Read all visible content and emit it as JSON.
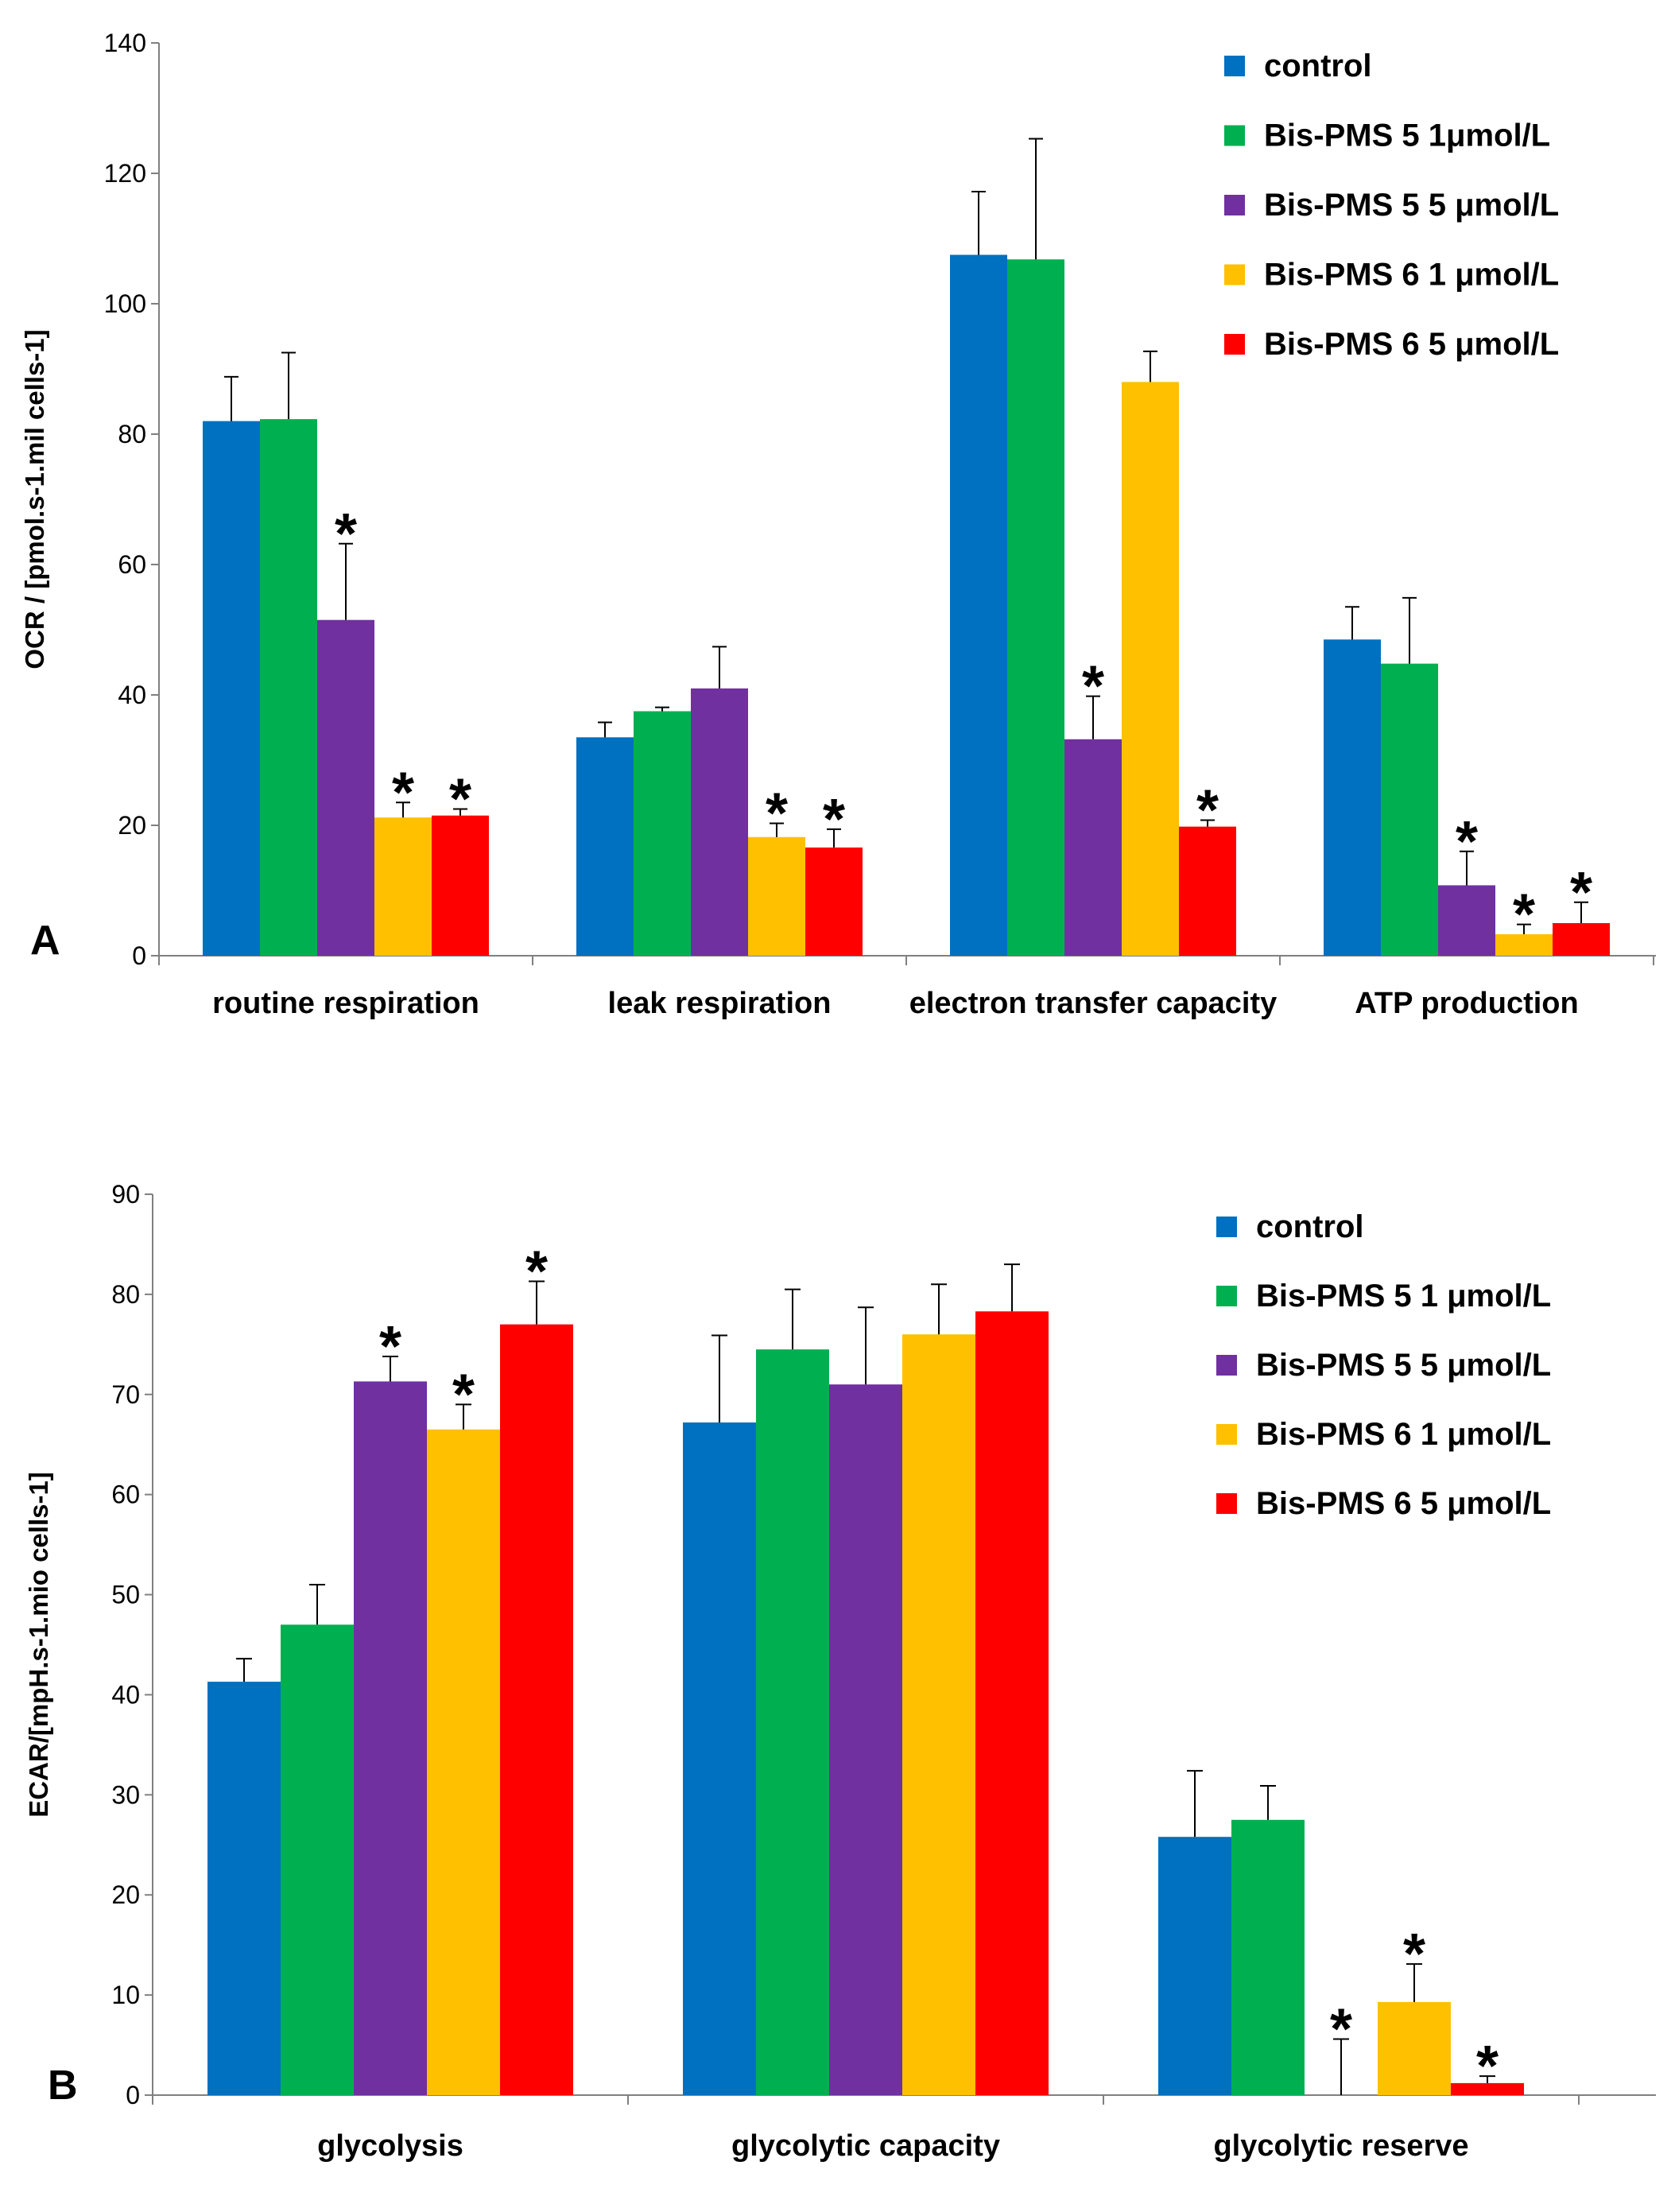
{
  "chart_data": [
    {
      "type": "bar",
      "panel_label": "A",
      "ylabel": "OCR / [pmol.s-1.mil cells-1]",
      "ylim": [
        0,
        140
      ],
      "yticks": [
        0,
        20,
        40,
        60,
        80,
        100,
        120,
        140
      ],
      "categories": [
        "routine respiration",
        "leak respiration",
        "electron transfer capacity",
        "ATP production"
      ],
      "legend_position": "top-right",
      "series": [
        {
          "name": "control",
          "color": "#0070C0",
          "values": [
            82,
            33.5,
            107.5,
            48.5
          ],
          "errors": [
            6.8,
            2.3,
            9.7,
            5
          ],
          "significant": [
            false,
            false,
            false,
            false
          ]
        },
        {
          "name": "Bis-PMS 5 1μmol/L",
          "color": "#00B050",
          "values": [
            82.3,
            37.5,
            106.8,
            44.8
          ],
          "errors": [
            10.2,
            0.6,
            18.5,
            10.1
          ],
          "significant": [
            false,
            false,
            false,
            false
          ]
        },
        {
          "name": "Bis-PMS 5 5 μmol/L",
          "color": "#7030A0",
          "values": [
            51.5,
            41,
            33.2,
            10.8
          ],
          "errors": [
            11.7,
            6.4,
            6.6,
            5.2
          ],
          "significant": [
            true,
            false,
            true,
            true
          ]
        },
        {
          "name": "Bis-PMS 6 1 μmol/L",
          "color": "#FFC000",
          "values": [
            21.2,
            18.2,
            88,
            3.3
          ],
          "errors": [
            2.3,
            2.1,
            4.7,
            1.5
          ],
          "significant": [
            true,
            true,
            false,
            true
          ]
        },
        {
          "name": "Bis-PMS 6 5 μmol/L",
          "color": "#FF0000",
          "values": [
            21.5,
            16.6,
            19.8,
            5
          ],
          "errors": [
            1,
            2.8,
            1,
            3.2
          ],
          "significant": [
            true,
            true,
            true,
            true
          ]
        }
      ]
    },
    {
      "type": "bar",
      "panel_label": "B",
      "ylabel": "ECAR/[mpH.s-1.mio cells-1]",
      "ylim": [
        0,
        90
      ],
      "yticks": [
        0,
        10,
        20,
        30,
        40,
        50,
        60,
        70,
        80,
        90
      ],
      "categories": [
        "glycolysis",
        "glycolytic  capacity",
        "glycolytic reserve"
      ],
      "legend_position": "top-right",
      "series": [
        {
          "name": "control",
          "color": "#0070C0",
          "values": [
            41.3,
            67.2,
            25.8
          ],
          "errors": [
            2.3,
            8.7,
            6.6
          ],
          "significant": [
            false,
            false,
            false
          ]
        },
        {
          "name": "Bis-PMS 5 1 μmol/L",
          "color": "#00B050",
          "values": [
            47,
            74.5,
            27.5
          ],
          "errors": [
            4,
            6,
            3.4
          ],
          "significant": [
            false,
            false,
            false
          ]
        },
        {
          "name": "Bis-PMS 5 5 μmol/L",
          "color": "#7030A0",
          "values": [
            71.3,
            71,
            0
          ],
          "errors": [
            2.5,
            7.7,
            5.6
          ],
          "significant": [
            true,
            false,
            true
          ]
        },
        {
          "name": "Bis-PMS 6 1 μmol/L",
          "color": "#FFC000",
          "values": [
            66.5,
            76,
            9.3
          ],
          "errors": [
            2.5,
            5,
            3.8
          ],
          "significant": [
            true,
            false,
            true
          ]
        },
        {
          "name": "Bis-PMS 6 5 μmol/L",
          "color": "#FF0000",
          "values": [
            77,
            78.3,
            1.2
          ],
          "errors": [
            4.3,
            4.7,
            0.7
          ],
          "significant": [
            true,
            false,
            true
          ]
        }
      ]
    }
  ],
  "significance_marker": "*"
}
